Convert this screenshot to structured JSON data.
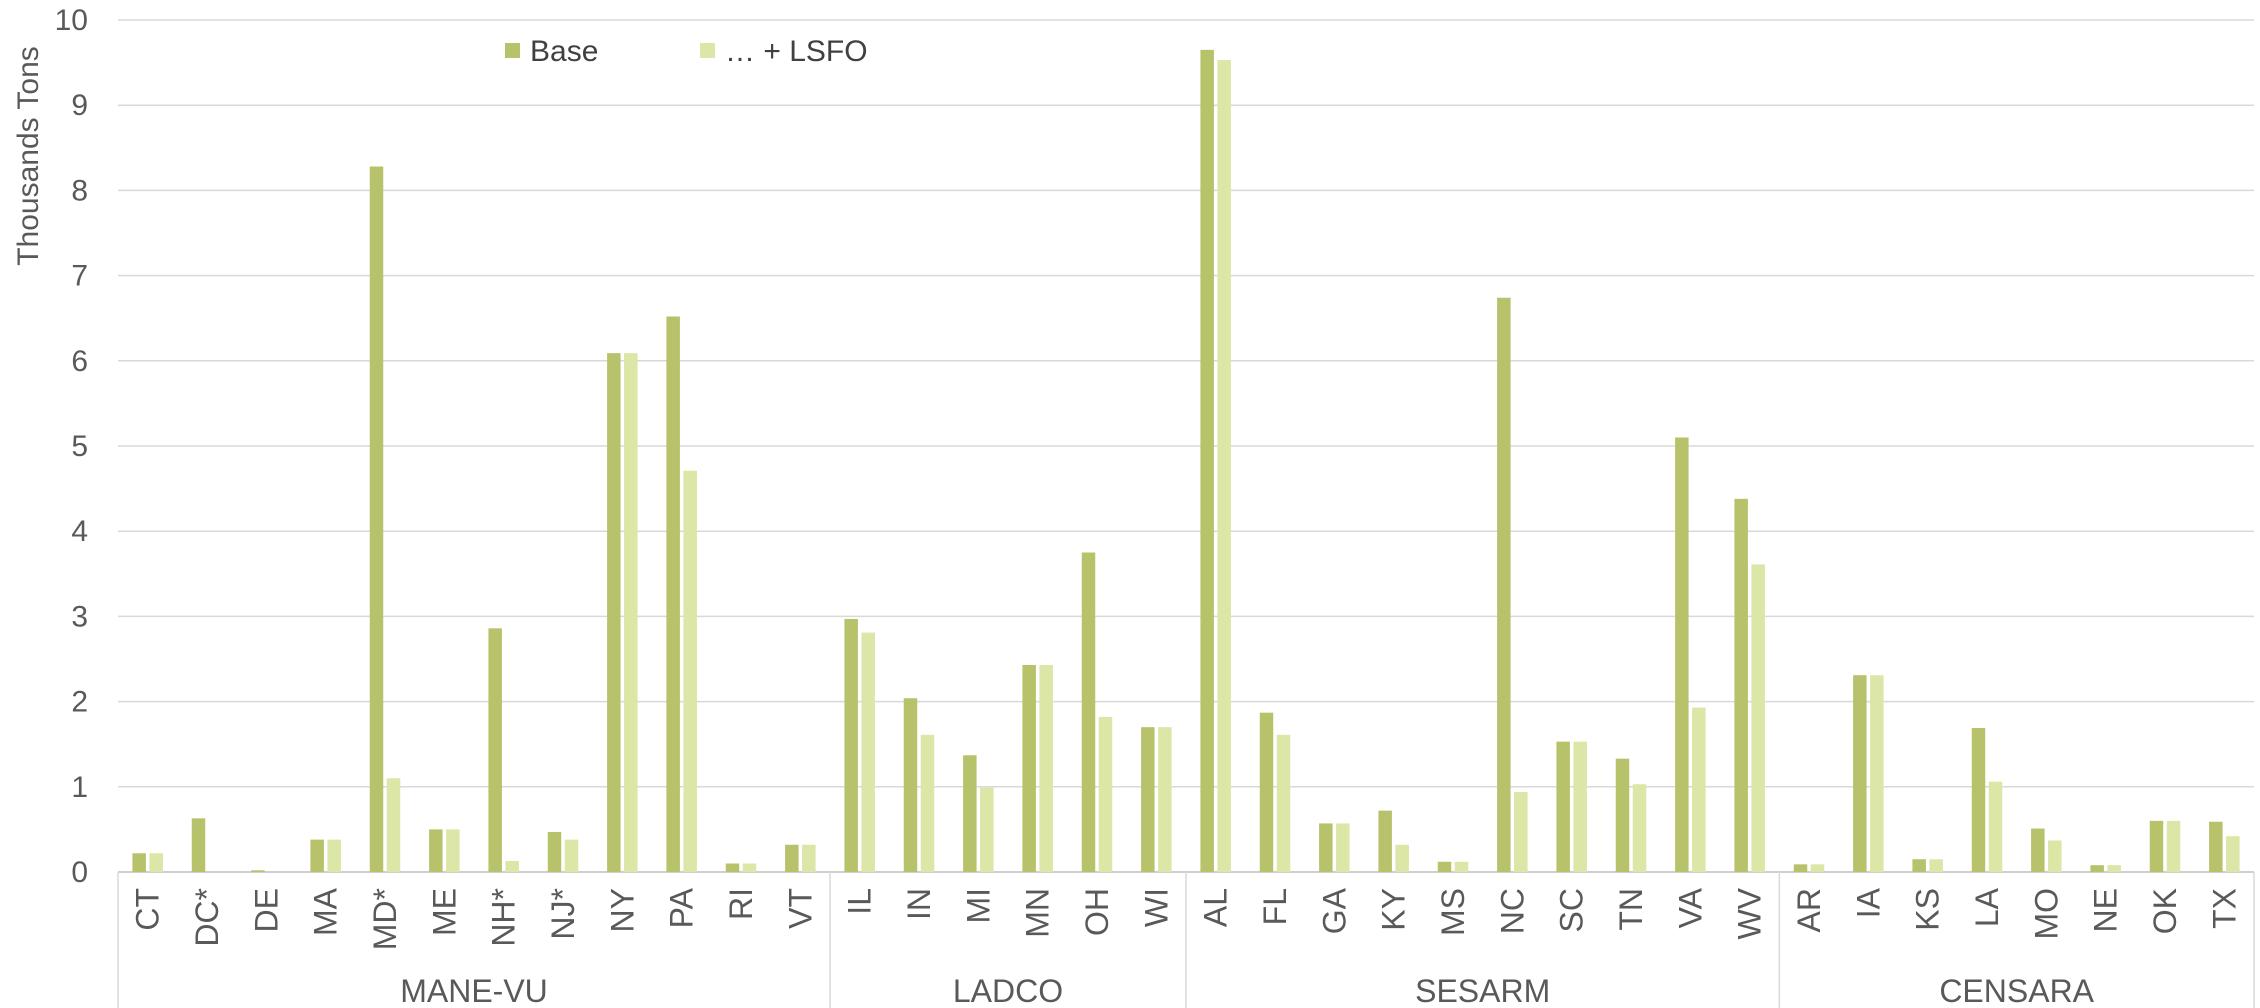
{
  "chart_data": {
    "type": "bar",
    "ylabel": "Thousands Tons",
    "xlabel": "",
    "ylim": [
      0,
      10
    ],
    "yticks": [
      "0",
      "1",
      "2",
      "3",
      "4",
      "5",
      "6",
      "7",
      "8",
      "9",
      "10"
    ],
    "grid": true,
    "legend_position": "top-left",
    "categories": [
      "CT",
      "DC*",
      "DE",
      "MA",
      "MD*",
      "ME",
      "NH*",
      "NJ*",
      "NY",
      "PA",
      "RI",
      "VT",
      "IL",
      "IN",
      "MI",
      "MN",
      "OH",
      "WI",
      "AL",
      "FL",
      "GA",
      "KY",
      "MS",
      "NC",
      "SC",
      "TN",
      "VA",
      "WV",
      "AR",
      "IA",
      "KS",
      "LA",
      "MO",
      "NE",
      "OK",
      "TX"
    ],
    "groups": [
      {
        "label": "MANE-VU",
        "count": 12
      },
      {
        "label": "LADCO",
        "count": 6
      },
      {
        "label": "SESARM",
        "count": 10
      },
      {
        "label": "CENSARA",
        "count": 8
      }
    ],
    "series": [
      {
        "name": "Base",
        "color": "#b8c26b",
        "values": [
          0.22,
          0.63,
          0.02,
          0.38,
          8.28,
          0.5,
          2.86,
          0.47,
          6.09,
          6.52,
          0.1,
          0.32,
          2.97,
          2.04,
          1.37,
          2.43,
          3.75,
          1.7,
          9.65,
          1.87,
          0.57,
          0.72,
          0.12,
          6.74,
          1.53,
          1.33,
          5.1,
          4.38,
          0.09,
          2.31,
          0.15,
          1.69,
          0.51,
          0.08,
          0.6,
          0.59
        ]
      },
      {
        "name": "… + LSFO",
        "color": "#dce6a6",
        "values": [
          0.22,
          0.0,
          0.0,
          0.38,
          1.1,
          0.5,
          0.13,
          0.38,
          6.09,
          4.71,
          0.1,
          0.32,
          2.81,
          1.61,
          0.99,
          2.43,
          1.82,
          1.7,
          9.53,
          1.61,
          0.57,
          0.32,
          0.12,
          0.94,
          1.53,
          1.03,
          1.93,
          3.61,
          0.09,
          2.31,
          0.15,
          1.06,
          0.37,
          0.08,
          0.6,
          0.42
        ]
      }
    ]
  }
}
